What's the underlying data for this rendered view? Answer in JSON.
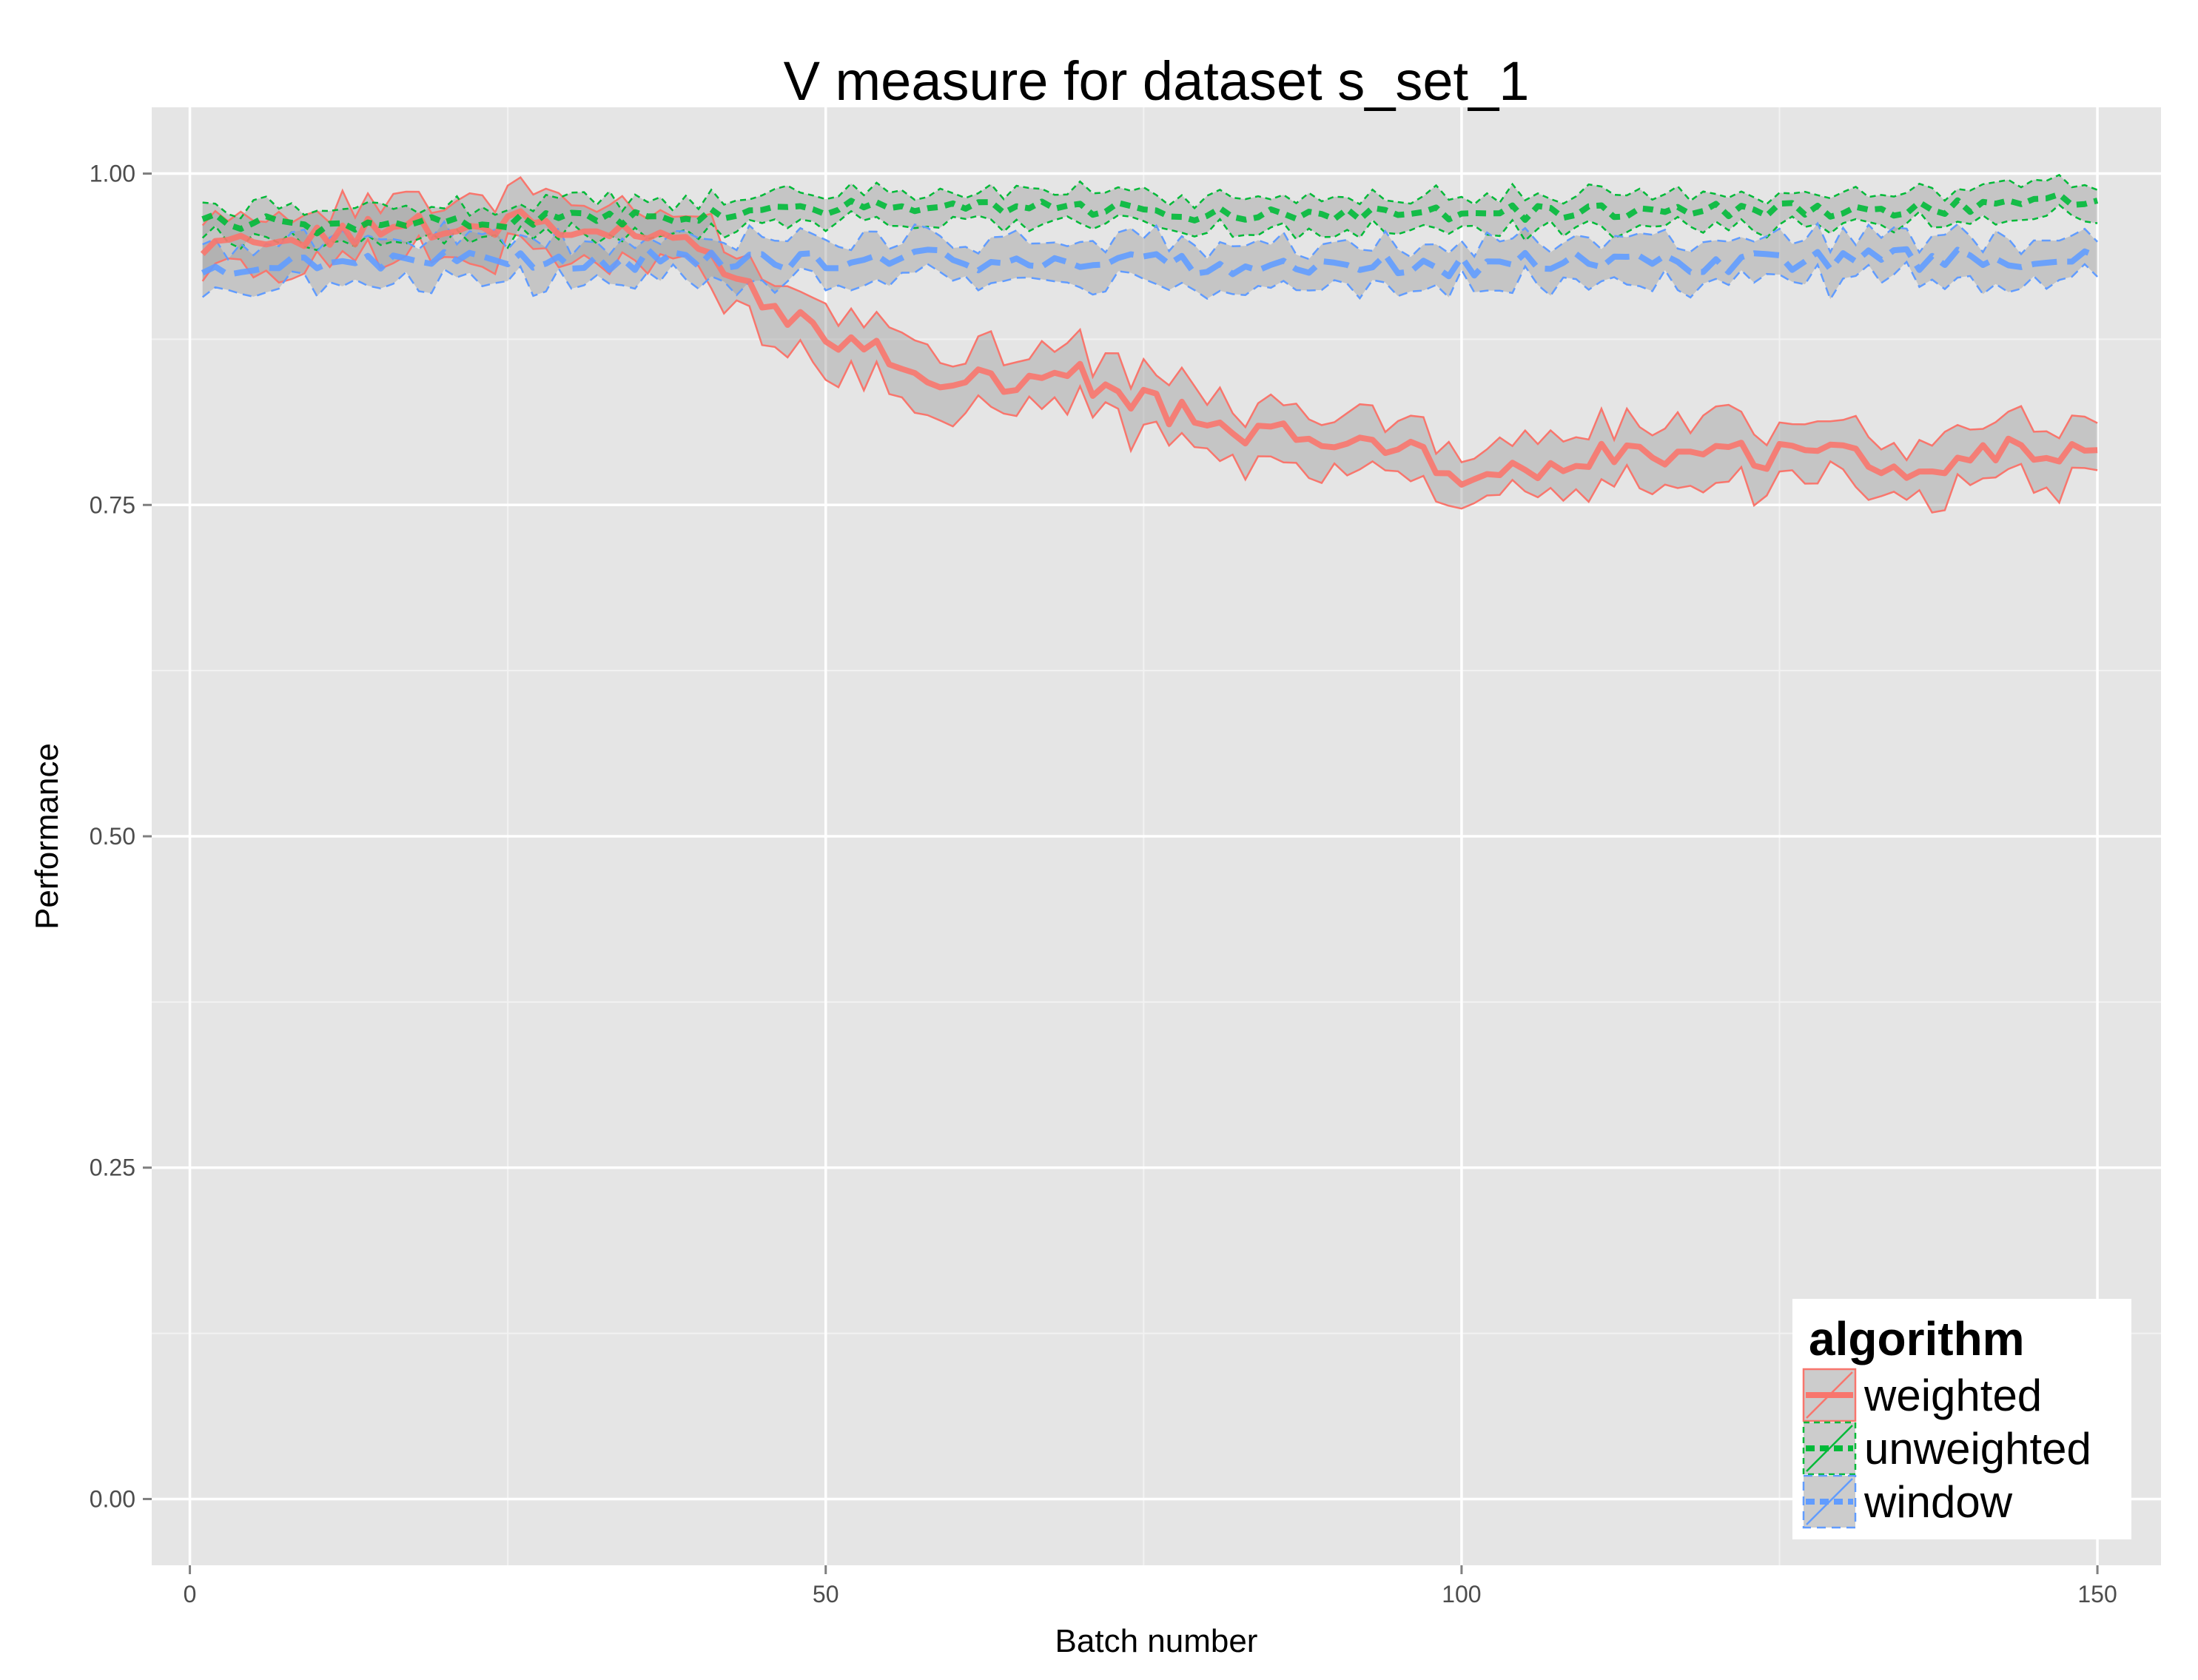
{
  "chart_data": {
    "type": "line",
    "title": "V measure for dataset s_set_1",
    "xlabel": "Batch number",
    "ylabel": "Performance",
    "xlim": [
      -3,
      155
    ],
    "ylim": [
      -0.05,
      1.05
    ],
    "x_ticks": [
      0,
      50,
      100,
      150
    ],
    "x_tick_labels": [
      "0",
      "50",
      "100",
      "150"
    ],
    "y_ticks": [
      0,
      0.25,
      0.5,
      0.75,
      1.0
    ],
    "y_tick_labels": [
      "0.00",
      "0.25",
      "0.50",
      "0.75",
      "1.00"
    ],
    "grid": true,
    "legend": {
      "title": "algorithm",
      "position": "bottom-right",
      "entries": [
        "weighted",
        "unweighted",
        "window"
      ]
    },
    "x": {
      "start": 1,
      "end": 150,
      "step": 1
    },
    "series": [
      {
        "name": "weighted",
        "color": "#f8766d",
        "line_style": "solid",
        "anchors": [
          [
            1,
            0.935
          ],
          [
            5,
            0.945
          ],
          [
            10,
            0.95
          ],
          [
            15,
            0.955
          ],
          [
            20,
            0.96
          ],
          [
            25,
            0.96
          ],
          [
            30,
            0.96
          ],
          [
            35,
            0.955
          ],
          [
            38,
            0.95
          ],
          [
            40,
            0.945
          ],
          [
            42,
            0.935
          ],
          [
            45,
            0.91
          ],
          [
            48,
            0.89
          ],
          [
            50,
            0.88
          ],
          [
            55,
            0.86
          ],
          [
            58,
            0.85
          ],
          [
            60,
            0.845
          ],
          [
            65,
            0.84
          ],
          [
            70,
            0.845
          ],
          [
            72,
            0.83
          ],
          [
            75,
            0.825
          ],
          [
            80,
            0.81
          ],
          [
            85,
            0.8
          ],
          [
            90,
            0.805
          ],
          [
            95,
            0.8
          ],
          [
            100,
            0.775
          ],
          [
            105,
            0.77
          ],
          [
            110,
            0.79
          ],
          [
            115,
            0.79
          ],
          [
            120,
            0.79
          ],
          [
            125,
            0.785
          ],
          [
            130,
            0.785
          ],
          [
            135,
            0.78
          ],
          [
            140,
            0.785
          ],
          [
            145,
            0.795
          ],
          [
            150,
            0.785
          ]
        ],
        "noise": 0.012,
        "band_halfwidth": 0.022
      },
      {
        "name": "unweighted",
        "color": "#00ba38",
        "line_style": "dashed",
        "anchors": [
          [
            1,
            0.965
          ],
          [
            10,
            0.96
          ],
          [
            20,
            0.965
          ],
          [
            30,
            0.965
          ],
          [
            40,
            0.97
          ],
          [
            50,
            0.975
          ],
          [
            60,
            0.975
          ],
          [
            70,
            0.975
          ],
          [
            80,
            0.97
          ],
          [
            90,
            0.97
          ],
          [
            100,
            0.97
          ],
          [
            110,
            0.97
          ],
          [
            120,
            0.972
          ],
          [
            130,
            0.972
          ],
          [
            140,
            0.975
          ],
          [
            150,
            0.98
          ]
        ],
        "noise": 0.006,
        "band_halfwidth": 0.012
      },
      {
        "name": "window",
        "color": "#619cff",
        "line_style": "longdash",
        "anchors": [
          [
            1,
            0.93
          ],
          [
            10,
            0.935
          ],
          [
            20,
            0.935
          ],
          [
            30,
            0.935
          ],
          [
            40,
            0.935
          ],
          [
            50,
            0.935
          ],
          [
            60,
            0.935
          ],
          [
            70,
            0.935
          ],
          [
            80,
            0.932
          ],
          [
            90,
            0.932
          ],
          [
            100,
            0.93
          ],
          [
            110,
            0.935
          ],
          [
            120,
            0.932
          ],
          [
            130,
            0.935
          ],
          [
            140,
            0.935
          ],
          [
            150,
            0.94
          ]
        ],
        "noise": 0.008,
        "band_halfwidth": 0.016
      }
    ]
  }
}
